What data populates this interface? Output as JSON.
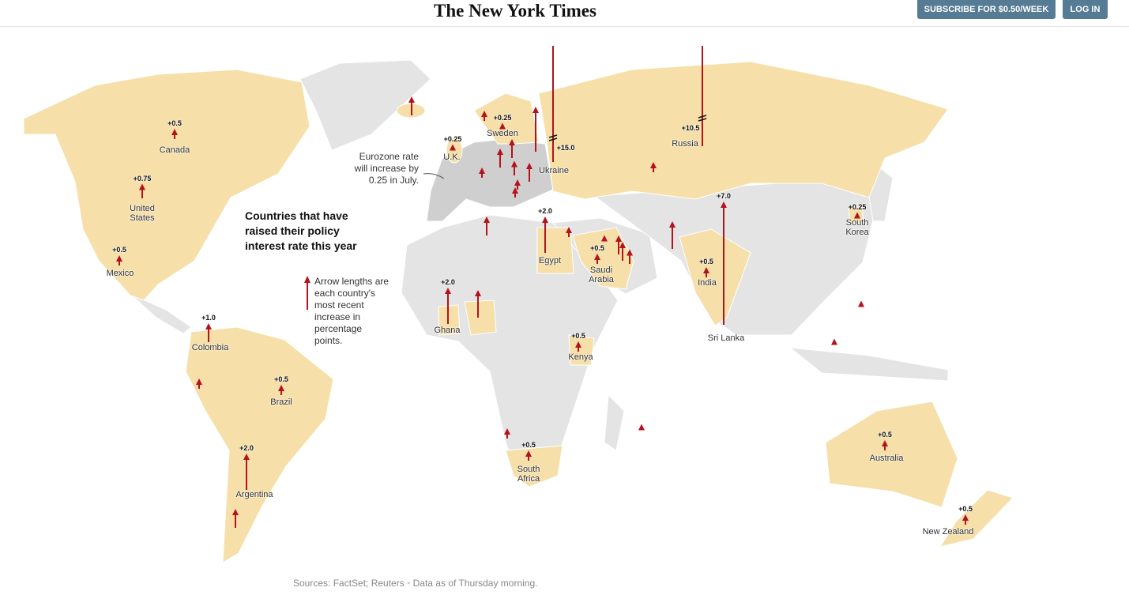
{
  "header": {
    "logo": "The New York Times",
    "subscribe": "SUBSCRIBE FOR $0.50/WEEK",
    "login": "LOG IN"
  },
  "map": {
    "title": "Countries that have raised their policy interest rate this year",
    "legend": "Arrow lengths are each country's most recent increase in percentage points.",
    "annotation": "Eurozone rate will increase by 0.25 in July.",
    "countries": [
      {
        "name": "Canada",
        "value": 0.5,
        "value_label": "+0.5"
      },
      {
        "name": "United States",
        "value": 0.75,
        "value_label": "+0.75"
      },
      {
        "name": "Mexico",
        "value": 0.5,
        "value_label": "+0.5"
      },
      {
        "name": "Colombia",
        "value": 1.0,
        "value_label": "+1.0"
      },
      {
        "name": "Brazil",
        "value": 0.5,
        "value_label": "+0.5"
      },
      {
        "name": "Argentina",
        "value": 2.0,
        "value_label": "+2.0"
      },
      {
        "name": "U.K.",
        "value": 0.25,
        "value_label": "+0.25"
      },
      {
        "name": "Sweden",
        "value": 0.25,
        "value_label": "+0.25"
      },
      {
        "name": "Ukraine",
        "value": 15.0,
        "value_label": "+15.0"
      },
      {
        "name": "Russia",
        "value": 10.5,
        "value_label": "+10.5"
      },
      {
        "name": "Egypt",
        "value": 2.0,
        "value_label": "+2.0"
      },
      {
        "name": "Saudi Arabia",
        "value": 0.5,
        "value_label": "+0.5"
      },
      {
        "name": "India",
        "value": 0.5,
        "value_label": "+0.5"
      },
      {
        "name": "Sri Lanka",
        "value": 7.0,
        "value_label": "+7.0"
      },
      {
        "name": "South Korea",
        "value": 0.25,
        "value_label": "+0.25"
      },
      {
        "name": "Ghana",
        "value": 2.0,
        "value_label": "+2.0"
      },
      {
        "name": "Kenya",
        "value": 0.5,
        "value_label": "+0.5"
      },
      {
        "name": "South Africa",
        "value": 0.5,
        "value_label": "+0.5"
      },
      {
        "name": "Australia",
        "value": 0.5,
        "value_label": "+0.5"
      },
      {
        "name": "New Zealand",
        "value": 0.5,
        "value_label": "+0.5"
      }
    ],
    "unlabeled_increases": [
      1.0,
      0.5,
      2.5,
      1.0,
      1.0,
      0.5,
      0.75,
      1.0,
      0.5,
      0.5,
      1.0,
      0.5,
      0.25,
      1.0,
      1.0,
      0.75,
      1.5,
      0.5,
      1.5,
      0.5,
      0.5,
      1.0,
      0.25,
      0.25,
      0.25
    ]
  },
  "footer": {
    "sources": "Sources: FactSet; Reuters",
    "note": "Data as of Thursday morning."
  }
}
